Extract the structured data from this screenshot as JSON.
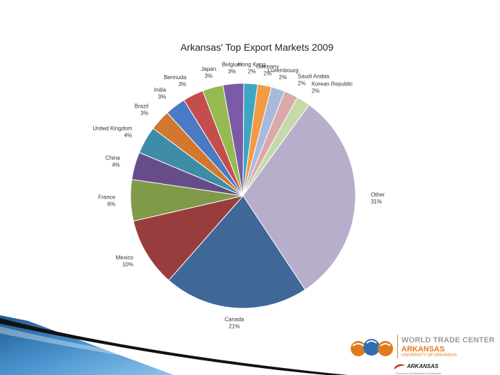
{
  "chart_data": {
    "type": "pie",
    "title": "Arkansas' Top Export Markets 2009",
    "slices": [
      {
        "label": "France",
        "pct_label": "6%",
        "value": 6,
        "color": "#7f9a48"
      },
      {
        "label": "China",
        "pct_label": "4%",
        "value": 4,
        "color": "#664d8a"
      },
      {
        "label": "United Kingdom",
        "pct_label": "4%",
        "value": 4,
        "color": "#3d8da6"
      },
      {
        "label": "Brazil",
        "pct_label": "3%",
        "value": 3,
        "color": "#d2782e"
      },
      {
        "label": "India",
        "pct_label": "3%",
        "value": 3,
        "color": "#4a7ac4"
      },
      {
        "label": "Bermuda",
        "pct_label": "3%",
        "value": 3,
        "color": "#c44d4d"
      },
      {
        "label": "Japan",
        "pct_label": "3%",
        "value": 3,
        "color": "#97b952"
      },
      {
        "label": "Belgium",
        "pct_label": "3%",
        "value": 3,
        "color": "#7c5aa6"
      },
      {
        "label": "Hong Kong",
        "pct_label": "2%",
        "value": 2,
        "color": "#3fa6c2"
      },
      {
        "label": "Germany",
        "pct_label": "2%",
        "value": 2,
        "color": "#f39a45"
      },
      {
        "label": "Luxembourg",
        "pct_label": "2%",
        "value": 2,
        "color": "#a9b9dc"
      },
      {
        "label": "Saudi Arabia",
        "pct_label": "2%",
        "value": 2,
        "color": "#dba9a9"
      },
      {
        "label": "Korean Republic",
        "pct_label": "2%",
        "value": 2,
        "color": "#c4dba9"
      },
      {
        "label": "Other",
        "pct_label": "31%",
        "value": 31,
        "color": "#b7aecb"
      },
      {
        "label": "Canada",
        "pct_label": "21%",
        "value": 21,
        "color": "#3f6899"
      },
      {
        "label": "Mexico",
        "pct_label": "10%",
        "value": 10,
        "color": "#983d3d"
      }
    ]
  },
  "logo": {
    "line1": "WORLD TRADE CENTER",
    "line2": "ARKANSAS",
    "line3": "UNIVERSITY OF ARKANSAS",
    "line4": "ARKANSAS",
    "line5": "Economic Development Commission"
  }
}
